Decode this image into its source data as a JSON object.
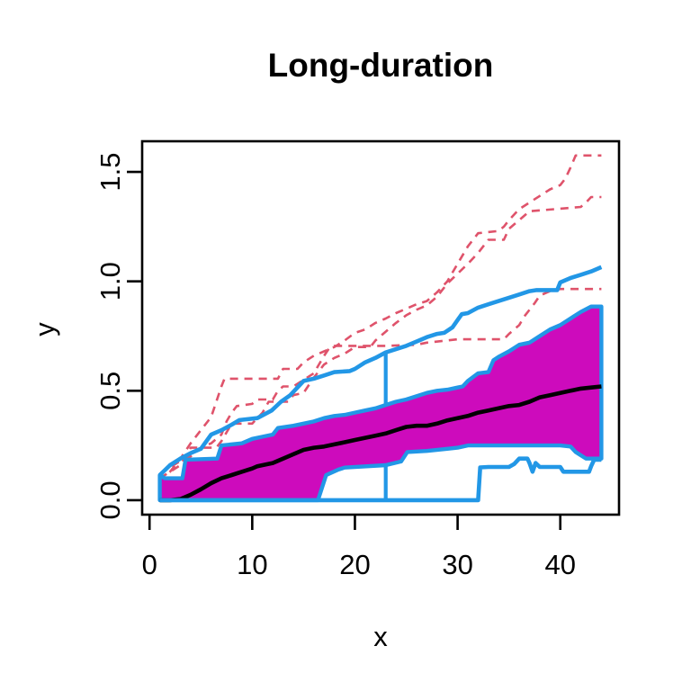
{
  "page": {
    "background": "#ffffff"
  },
  "chart_data": {
    "type": "line",
    "title": "Long-duration",
    "xlabel": "x",
    "ylabel": "y",
    "xlim": [
      -0.72,
      45.72
    ],
    "ylim": [
      -0.066,
      1.64
    ],
    "grid": false,
    "legend": null,
    "x_ticks": [
      0,
      10,
      20,
      30,
      40
    ],
    "x_tick_labels": [
      "0",
      "10",
      "20",
      "30",
      "40"
    ],
    "y_ticks": [
      0.0,
      0.5,
      1.0,
      1.5
    ],
    "y_tick_labels": [
      "0.0",
      "0.5",
      "1.0",
      "1.5"
    ],
    "colors": {
      "central_fill": "#CD0BBC",
      "envelope": "#2297E6",
      "median": "#000000",
      "outlier": "#DF536B",
      "frame": "#000000"
    },
    "series": [
      {
        "name": "outlier-curve-1",
        "kind": "line",
        "color": "#DF536B",
        "width": 2.6,
        "dash": [
          9,
          7
        ],
        "x": [
          1,
          2,
          3,
          4,
          5,
          6,
          6.5,
          7,
          7.3,
          12.5,
          13,
          14.4,
          15,
          16,
          17,
          18,
          19,
          20,
          21,
          22,
          23,
          24,
          25,
          26,
          27,
          27.5,
          28,
          29,
          30,
          31,
          32,
          34,
          34.5,
          35,
          36,
          37,
          38,
          39,
          40,
          40.5,
          41,
          41.5,
          44
        ],
        "y": [
          0.08,
          0.13,
          0.19,
          0.26,
          0.32,
          0.38,
          0.45,
          0.52,
          0.555,
          0.555,
          0.6,
          0.6,
          0.63,
          0.66,
          0.68,
          0.7,
          0.73,
          0.765,
          0.78,
          0.81,
          0.83,
          0.855,
          0.875,
          0.895,
          0.91,
          0.93,
          0.95,
          1.0,
          1.08,
          1.16,
          1.22,
          1.23,
          1.25,
          1.28,
          1.33,
          1.36,
          1.39,
          1.42,
          1.44,
          1.47,
          1.52,
          1.575,
          1.575
        ]
      },
      {
        "name": "outlier-curve-2",
        "kind": "line",
        "color": "#DF536B",
        "width": 2.6,
        "dash": [
          9,
          7
        ],
        "x": [
          1,
          2,
          3,
          4,
          6.5,
          7,
          8,
          10,
          11,
          11.6,
          13.5,
          14,
          15,
          16,
          17,
          18,
          19,
          20,
          21.5,
          22,
          23,
          24,
          25,
          26,
          27,
          28,
          29,
          30,
          31,
          32,
          33,
          34.5,
          35,
          36,
          37,
          39.5,
          42,
          42.5,
          43,
          44
        ],
        "y": [
          0.1,
          0.13,
          0.16,
          0.24,
          0.24,
          0.27,
          0.35,
          0.35,
          0.4,
          0.45,
          0.45,
          0.48,
          0.49,
          0.56,
          0.62,
          0.65,
          0.67,
          0.7,
          0.7,
          0.73,
          0.77,
          0.81,
          0.845,
          0.87,
          0.89,
          0.93,
          0.99,
          1.035,
          1.08,
          1.13,
          1.19,
          1.19,
          1.24,
          1.28,
          1.32,
          1.33,
          1.34,
          1.36,
          1.385,
          1.385
        ]
      },
      {
        "name": "outlier-curve-3",
        "kind": "line",
        "color": "#DF536B",
        "width": 2.6,
        "dash": [
          9,
          7
        ],
        "x": [
          1,
          2,
          3,
          4,
          5,
          6,
          7,
          7.5,
          8,
          8.5,
          10,
          10.5,
          12,
          12.5,
          13,
          14,
          15,
          16,
          16.5,
          17,
          17.5,
          18,
          23,
          26,
          27,
          29,
          30,
          31,
          34.5,
          35,
          35.5,
          36,
          36.5,
          37,
          37.5,
          38,
          39,
          40,
          44
        ],
        "y": [
          0.12,
          0.15,
          0.18,
          0.2,
          0.24,
          0.26,
          0.3,
          0.36,
          0.4,
          0.43,
          0.44,
          0.46,
          0.46,
          0.5,
          0.52,
          0.52,
          0.55,
          0.58,
          0.62,
          0.66,
          0.695,
          0.705,
          0.705,
          0.71,
          0.72,
          0.73,
          0.735,
          0.735,
          0.735,
          0.76,
          0.78,
          0.8,
          0.84,
          0.87,
          0.9,
          0.935,
          0.955,
          0.965,
          0.965
        ]
      },
      {
        "name": "whisker-bar",
        "kind": "vline",
        "color": "#2297E6",
        "width": 4.2,
        "x": 23,
        "y0": 0,
        "y1": 0.675
      },
      {
        "name": "central-region",
        "kind": "band",
        "fill": "#CD0BBC",
        "edge": "#2297E6",
        "width": 4.4,
        "upper": {
          "x": [
            1,
            1.5,
            3.2,
            3.5,
            6.6,
            7,
            9,
            10,
            11,
            12,
            12.5,
            14,
            15,
            16,
            17,
            18,
            19,
            20,
            21,
            22,
            23,
            24,
            25,
            26,
            27,
            28,
            29,
            30,
            30.5,
            31,
            32,
            33,
            33.5,
            34,
            35,
            36,
            37,
            38,
            39,
            40,
            41,
            42,
            43,
            44
          ],
          "y": [
            0.115,
            0.1,
            0.1,
            0.185,
            0.19,
            0.25,
            0.26,
            0.28,
            0.29,
            0.3,
            0.33,
            0.34,
            0.35,
            0.36,
            0.375,
            0.385,
            0.39,
            0.4,
            0.41,
            0.42,
            0.435,
            0.45,
            0.46,
            0.475,
            0.49,
            0.5,
            0.505,
            0.515,
            0.52,
            0.545,
            0.58,
            0.585,
            0.64,
            0.655,
            0.68,
            0.71,
            0.72,
            0.75,
            0.78,
            0.8,
            0.83,
            0.86,
            0.885,
            0.885
          ]
        },
        "lower": {
          "x": [
            1,
            16.4,
            17.2,
            18.4,
            19,
            23,
            24.5,
            25.1,
            27,
            29,
            30,
            31,
            40,
            41,
            41.5,
            42.5,
            44
          ],
          "y": [
            0,
            0,
            0.115,
            0.14,
            0.149,
            0.16,
            0.177,
            0.22,
            0.225,
            0.235,
            0.24,
            0.25,
            0.25,
            0.245,
            0.22,
            0.19,
            0.19
          ]
        }
      },
      {
        "name": "median-curve",
        "kind": "line",
        "color": "#000000",
        "width": 4.6,
        "x": [
          1,
          2,
          3,
          4,
          5,
          6,
          7,
          8,
          9,
          10,
          10.5,
          11,
          12,
          13,
          14,
          15,
          16,
          17,
          18,
          19,
          20,
          21,
          22,
          23,
          24,
          25,
          26,
          27,
          28,
          29,
          30,
          31,
          32,
          33,
          34,
          35,
          36,
          37,
          38,
          39,
          40,
          41,
          42,
          43,
          44
        ],
        "y": [
          0,
          0,
          0.005,
          0.025,
          0.05,
          0.078,
          0.1,
          0.115,
          0.13,
          0.145,
          0.155,
          0.16,
          0.17,
          0.19,
          0.21,
          0.23,
          0.24,
          0.245,
          0.255,
          0.265,
          0.275,
          0.285,
          0.295,
          0.305,
          0.32,
          0.335,
          0.34,
          0.34,
          0.35,
          0.365,
          0.375,
          0.385,
          0.4,
          0.41,
          0.42,
          0.43,
          0.435,
          0.45,
          0.47,
          0.48,
          0.49,
          0.5,
          0.51,
          0.515,
          0.52
        ]
      },
      {
        "name": "upper-fence",
        "kind": "line",
        "color": "#2297E6",
        "width": 4.6,
        "x": [
          1,
          2,
          3,
          4,
          5,
          6,
          7,
          8,
          8.75,
          10.5,
          11.9,
          12.8,
          13.7,
          15,
          16,
          17,
          18,
          19.5,
          20,
          21,
          22,
          23,
          24,
          25,
          26,
          27,
          28,
          28.7,
          29.5,
          30.4,
          31,
          32,
          33,
          34,
          35,
          36,
          37,
          37.7,
          39.7,
          40,
          41,
          42,
          43,
          44
        ],
        "y": [
          0.115,
          0.16,
          0.19,
          0.215,
          0.235,
          0.3,
          0.32,
          0.345,
          0.366,
          0.375,
          0.41,
          0.45,
          0.48,
          0.545,
          0.555,
          0.57,
          0.585,
          0.59,
          0.6,
          0.63,
          0.65,
          0.675,
          0.69,
          0.705,
          0.725,
          0.745,
          0.76,
          0.765,
          0.79,
          0.85,
          0.855,
          0.88,
          0.895,
          0.91,
          0.925,
          0.94,
          0.955,
          0.96,
          0.96,
          0.995,
          1.015,
          1.03,
          1.045,
          1.065
        ]
      },
      {
        "name": "lower-fence",
        "kind": "line",
        "color": "#2297E6",
        "width": 4.6,
        "x": [
          1,
          32,
          32.2,
          33,
          35,
          35.5,
          36,
          36.8,
          37,
          37.3,
          37.6,
          38,
          40,
          40.3,
          42.8,
          43,
          43.3,
          44
        ],
        "y": [
          0,
          0,
          0.15,
          0.152,
          0.152,
          0.165,
          0.19,
          0.19,
          0.17,
          0.13,
          0.17,
          0.152,
          0.152,
          0.13,
          0.13,
          0.155,
          0.185,
          0.185
        ]
      }
    ]
  }
}
